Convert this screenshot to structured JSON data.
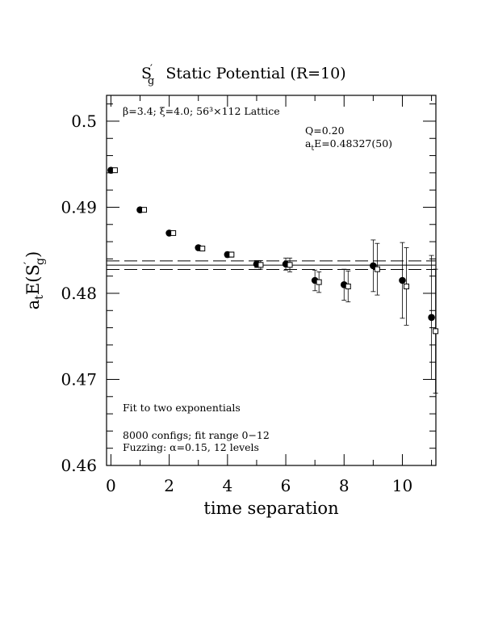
{
  "chart_data": {
    "type": "scatter",
    "title_main": "S",
    "title_sup": "′",
    "title_sub": "g",
    "title_rest": "Static Potential (R=10)",
    "xlabel": "time separation",
    "ylabel_prefix": "a",
    "ylabel_sub": "t",
    "ylabel_mid": "E(S",
    "ylabel_sup": "′",
    "ylabel_sub2": "g",
    "ylabel_end": ")",
    "xlim": [
      -0.15,
      11.15
    ],
    "ylim": [
      0.46,
      0.503
    ],
    "x_ticks": [
      0,
      2,
      4,
      6,
      8,
      10
    ],
    "x_tick_labels": [
      "0",
      "2",
      "4",
      "6",
      "8",
      "10"
    ],
    "y_ticks": [
      0.46,
      0.47,
      0.48,
      0.49,
      0.5
    ],
    "y_tick_labels": [
      "0.46",
      "0.47",
      "0.48",
      "0.49",
      "0.5"
    ],
    "annotations": {
      "lattice": "β=3.4; ξ=4.0; 56³×112 Lattice",
      "q": "Q=0.20",
      "fit_prefix": "a",
      "fit_sub": "t",
      "fit_rest": "E=0.48327(50)",
      "fit_type": "Fit to two exponentials",
      "configs": "8000 configs; fit range 0−12",
      "fuzzing": "Fuzzing: α=0.15, 12 levels"
    },
    "fit": {
      "value": 0.48327,
      "error": 0.0005,
      "x_range": [
        -0.15,
        11.15
      ]
    },
    "series": [
      {
        "marker": "filled-circle",
        "points": [
          {
            "x": 0,
            "y": 0.4943,
            "err": 0.0002
          },
          {
            "x": 1,
            "y": 0.4897,
            "err": 0.0002
          },
          {
            "x": 2,
            "y": 0.487,
            "err": 0.0002
          },
          {
            "x": 3,
            "y": 0.4853,
            "err": 0.0002
          },
          {
            "x": 4,
            "y": 0.4845,
            "err": 0.0003
          },
          {
            "x": 5,
            "y": 0.4834,
            "err": 0.0004
          },
          {
            "x": 6,
            "y": 0.4834,
            "err": 0.0007
          },
          {
            "x": 7,
            "y": 0.4815,
            "err": 0.0012
          },
          {
            "x": 8,
            "y": 0.481,
            "err": 0.0018
          },
          {
            "x": 9,
            "y": 0.4832,
            "err": 0.003
          },
          {
            "x": 10,
            "y": 0.4815,
            "err": 0.0044
          },
          {
            "x": 11,
            "y": 0.4772,
            "err": 0.0072
          }
        ]
      },
      {
        "marker": "open-square",
        "points": [
          {
            "x": 0,
            "y": 0.4943,
            "err": 0.0002
          },
          {
            "x": 1,
            "y": 0.4897,
            "err": 0.0002
          },
          {
            "x": 2,
            "y": 0.487,
            "err": 0.0002
          },
          {
            "x": 3,
            "y": 0.4852,
            "err": 0.0002
          },
          {
            "x": 4,
            "y": 0.4845,
            "err": 0.0003
          },
          {
            "x": 5,
            "y": 0.4833,
            "err": 0.0005
          },
          {
            "x": 6,
            "y": 0.4833,
            "err": 0.0008
          },
          {
            "x": 7,
            "y": 0.4813,
            "err": 0.0012
          },
          {
            "x": 8,
            "y": 0.4808,
            "err": 0.0018
          },
          {
            "x": 9,
            "y": 0.4828,
            "err": 0.003
          },
          {
            "x": 10,
            "y": 0.4808,
            "err": 0.0045
          },
          {
            "x": 11,
            "y": 0.4756,
            "err": 0.0072
          }
        ]
      }
    ]
  }
}
